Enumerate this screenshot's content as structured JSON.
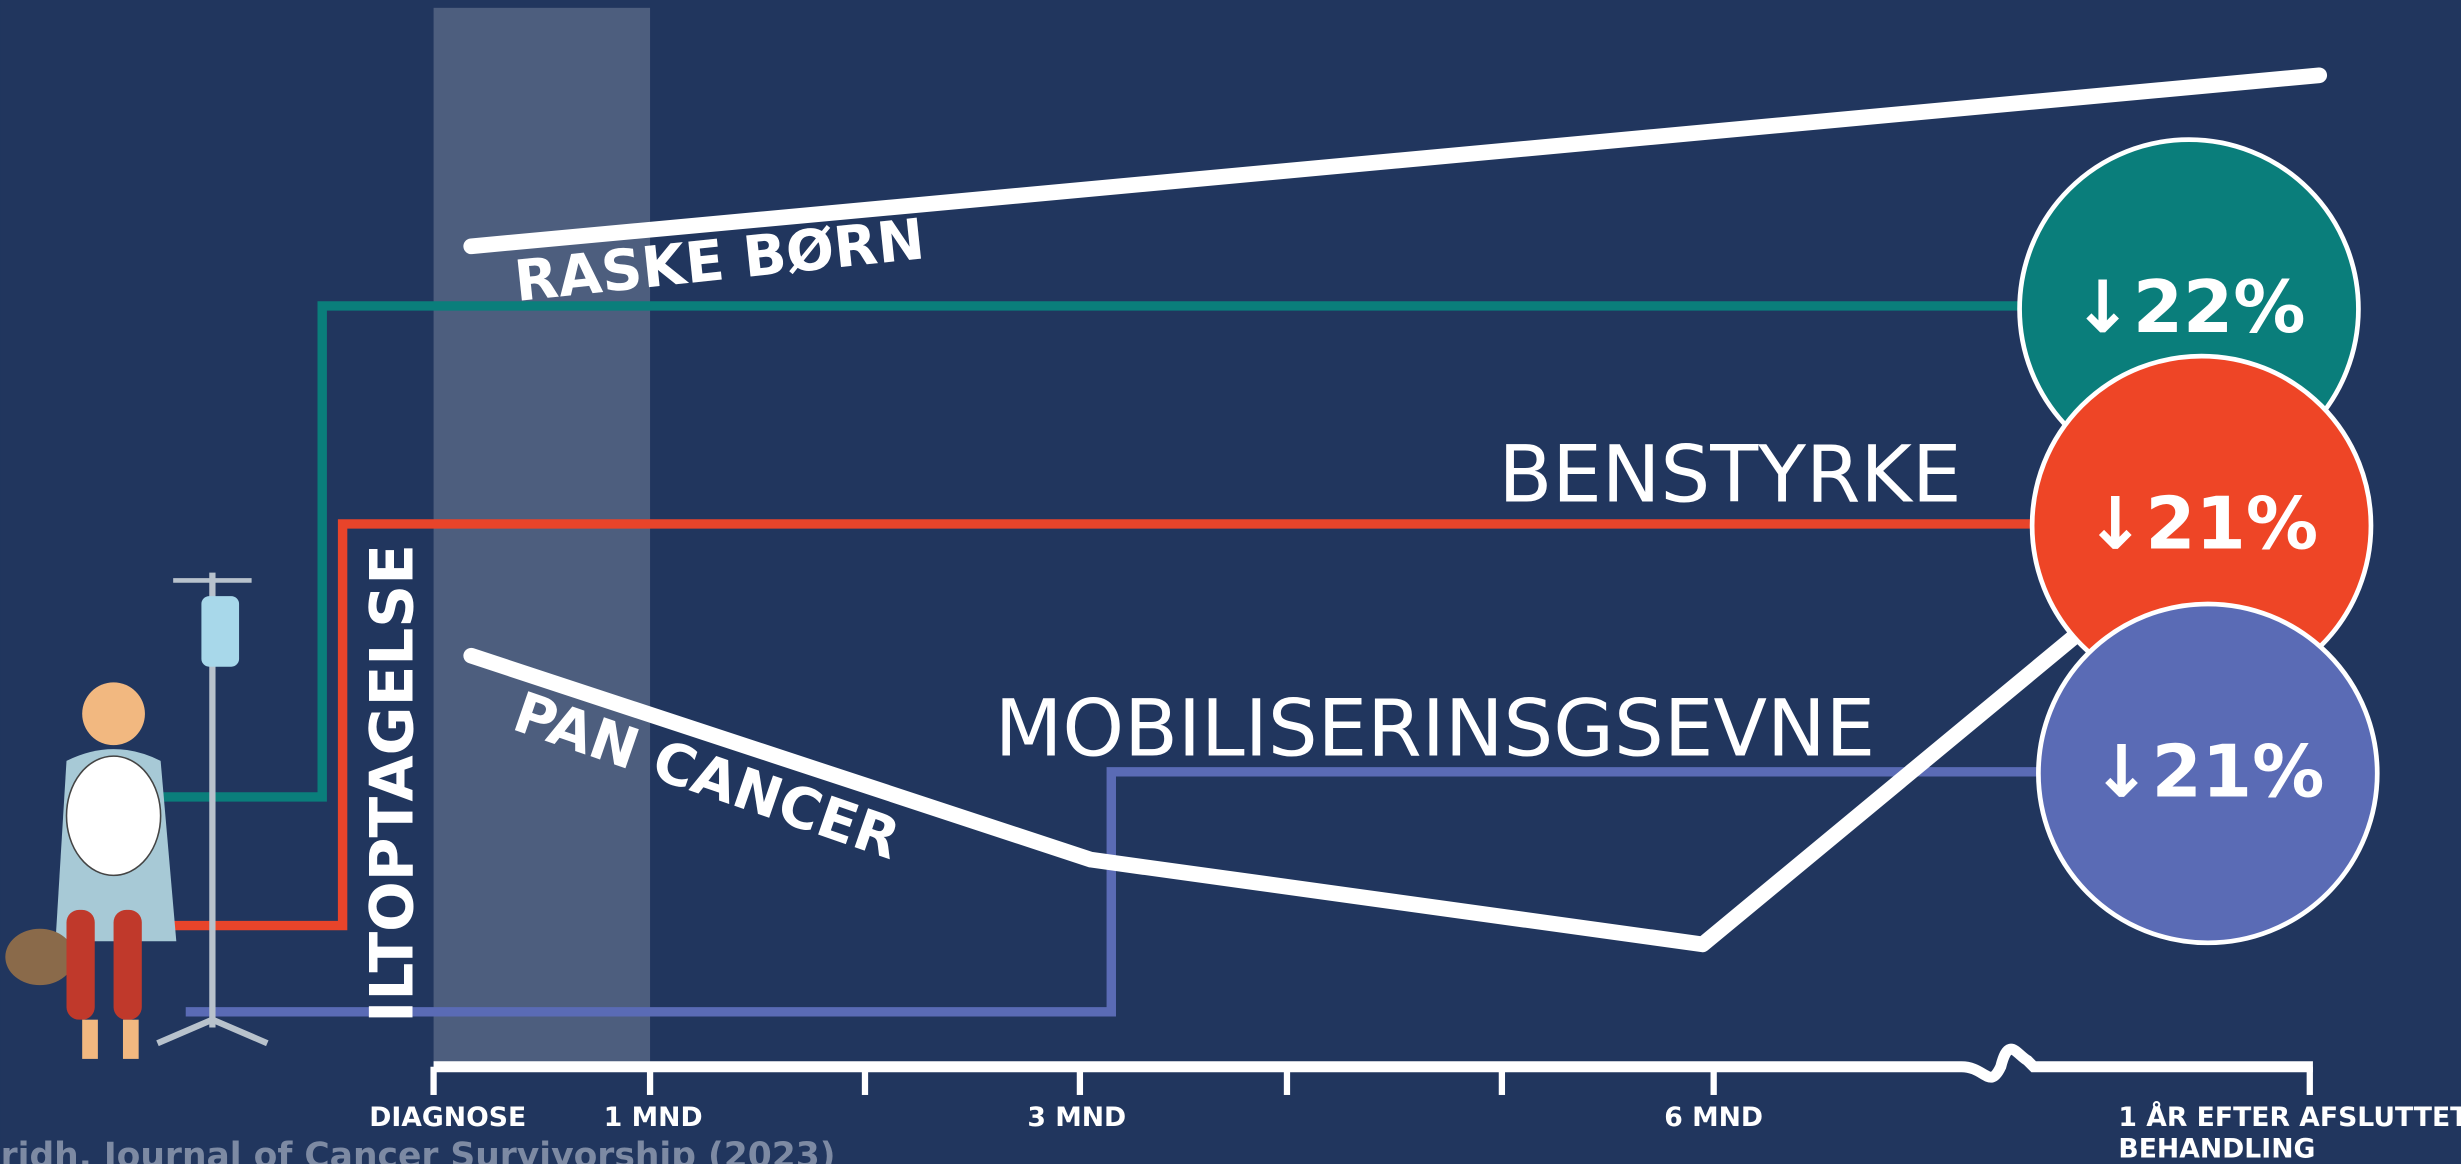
{
  "labels": {
    "healthy": "RASKE BØRN",
    "cancer": "PAN CANCER",
    "leg_strength": "BENSTYRKE",
    "mobility": "MOBILISERINSGSEVNE",
    "oxygen": "ILTOPTAGELSE"
  },
  "badges": [
    "↓22%",
    "↓21%",
    "↓21%"
  ],
  "timeline": [
    "DIAGNOSE",
    "1 MND",
    "3 MND",
    "6 MND",
    "1 ÅR EFTER AFSLUTTET",
    "BEHANDLING"
  ],
  "citation": "ridh, Journal of Cancer Survivorship (2023)"
}
